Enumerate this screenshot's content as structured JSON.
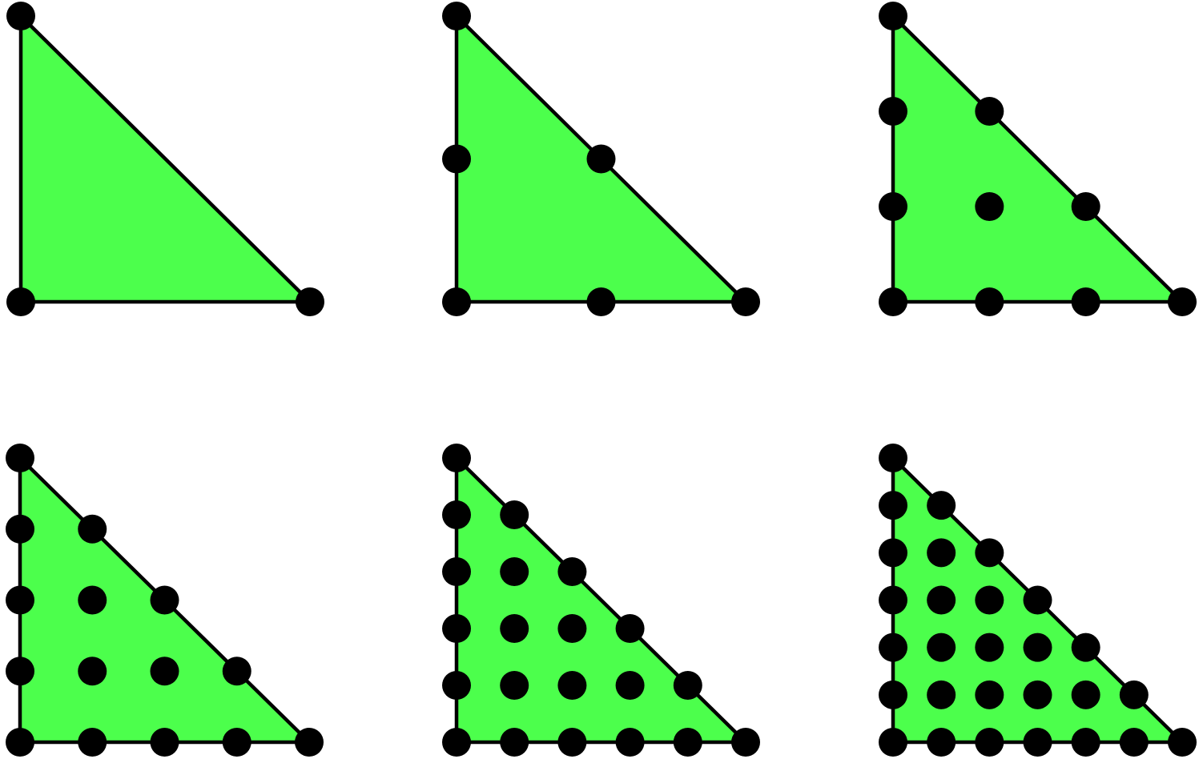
{
  "figure": {
    "colors": {
      "fill": "#4cff4c",
      "stroke": "#000000",
      "node": "#000000",
      "background": "#ffffff"
    },
    "panels": [
      {
        "id": "p1",
        "degree": 1
      },
      {
        "id": "p2",
        "degree": 2
      },
      {
        "id": "p3",
        "degree": 3
      },
      {
        "id": "p4",
        "degree": 4
      },
      {
        "id": "p5",
        "degree": 5
      },
      {
        "id": "p6",
        "degree": 6
      }
    ]
  }
}
